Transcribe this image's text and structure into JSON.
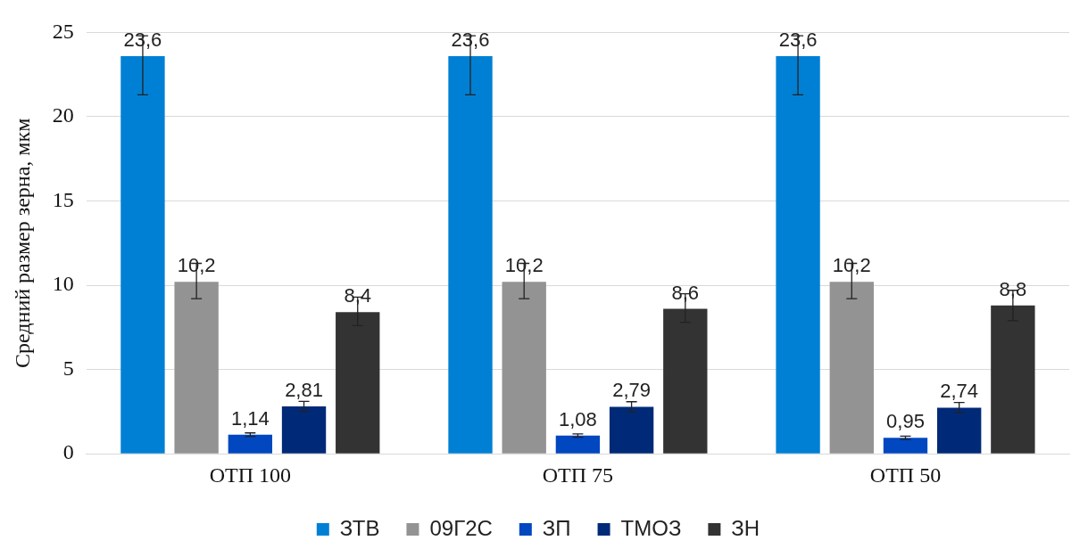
{
  "chart_data": {
    "type": "bar",
    "ylabel": "Средний размер зерна, мкм",
    "categories": [
      "ОТП 100",
      "ОТП 75",
      "ОТП 50"
    ],
    "series": [
      {
        "name": "ЗТВ",
        "color": "#0080d4",
        "values": [
          23.6,
          23.6,
          23.6
        ],
        "value_labels": [
          "23,6",
          "23,6",
          "23,6"
        ],
        "errors": [
          [
            21.3,
            24.8
          ],
          [
            21.3,
            24.8
          ],
          [
            21.3,
            24.8
          ]
        ]
      },
      {
        "name": "09Г2С",
        "color": "#939393",
        "values": [
          10.2,
          10.2,
          10.2
        ],
        "value_labels": [
          "10,2",
          "10,2",
          "10,2"
        ],
        "errors": [
          [
            9.2,
            11.3
          ],
          [
            9.2,
            11.3
          ],
          [
            9.2,
            11.3
          ]
        ]
      },
      {
        "name": "ЗП",
        "color": "#0047c0",
        "values": [
          1.14,
          1.08,
          0.95
        ],
        "value_labels": [
          "1,14",
          "1,08",
          "0,95"
        ],
        "errors": [
          0.1,
          0.1,
          0.1
        ]
      },
      {
        "name": "ТМОЗ",
        "color": "#002a78",
        "values": [
          2.81,
          2.79,
          2.74
        ],
        "value_labels": [
          "2,81",
          "2,79",
          "2,74"
        ],
        "errors": [
          0.3,
          0.3,
          0.3
        ]
      },
      {
        "name": "ЗН",
        "color": "#333333",
        "values": [
          8.4,
          8.6,
          8.8
        ],
        "value_labels": [
          "8,4",
          "8,6",
          "8,8"
        ],
        "errors": [
          [
            7.6,
            9.3
          ],
          [
            7.8,
            9.5
          ],
          [
            7.9,
            9.7
          ]
        ]
      }
    ],
    "ylim": [
      0,
      25
    ],
    "yticks": [
      0,
      5,
      10,
      15,
      20,
      25
    ],
    "grid": "y",
    "legend": "bottom"
  }
}
